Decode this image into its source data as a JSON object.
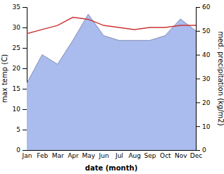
{
  "chart_data": {
    "type": "line",
    "categories": [
      "Jan",
      "Feb",
      "Mar",
      "Apr",
      "May",
      "Jun",
      "Jul",
      "Aug",
      "Sep",
      "Oct",
      "Nov",
      "Dec"
    ],
    "xlabel": "date (month)",
    "ylabel": "max temp (C)",
    "y2label": "med. precipitation (kg/m2)",
    "ylim": [
      0,
      35
    ],
    "yticks": [
      0,
      5,
      10,
      15,
      20,
      25,
      30,
      35
    ],
    "y2lim": [
      0,
      60
    ],
    "y2ticks": [
      0,
      10,
      20,
      30,
      40,
      50,
      60
    ],
    "series": [
      {
        "type": "area",
        "axis": "y2",
        "color": "#aabbee",
        "values": [
          28,
          40,
          36,
          46,
          57,
          48,
          46,
          46,
          46,
          48,
          55,
          50
        ]
      },
      {
        "type": "line",
        "color": "#cc3333",
        "values": [
          28.5,
          29.5,
          30.5,
          32.5,
          32.0,
          30.5,
          30.0,
          29.5,
          30.0,
          30.0,
          30.5,
          30.5
        ]
      }
    ]
  }
}
